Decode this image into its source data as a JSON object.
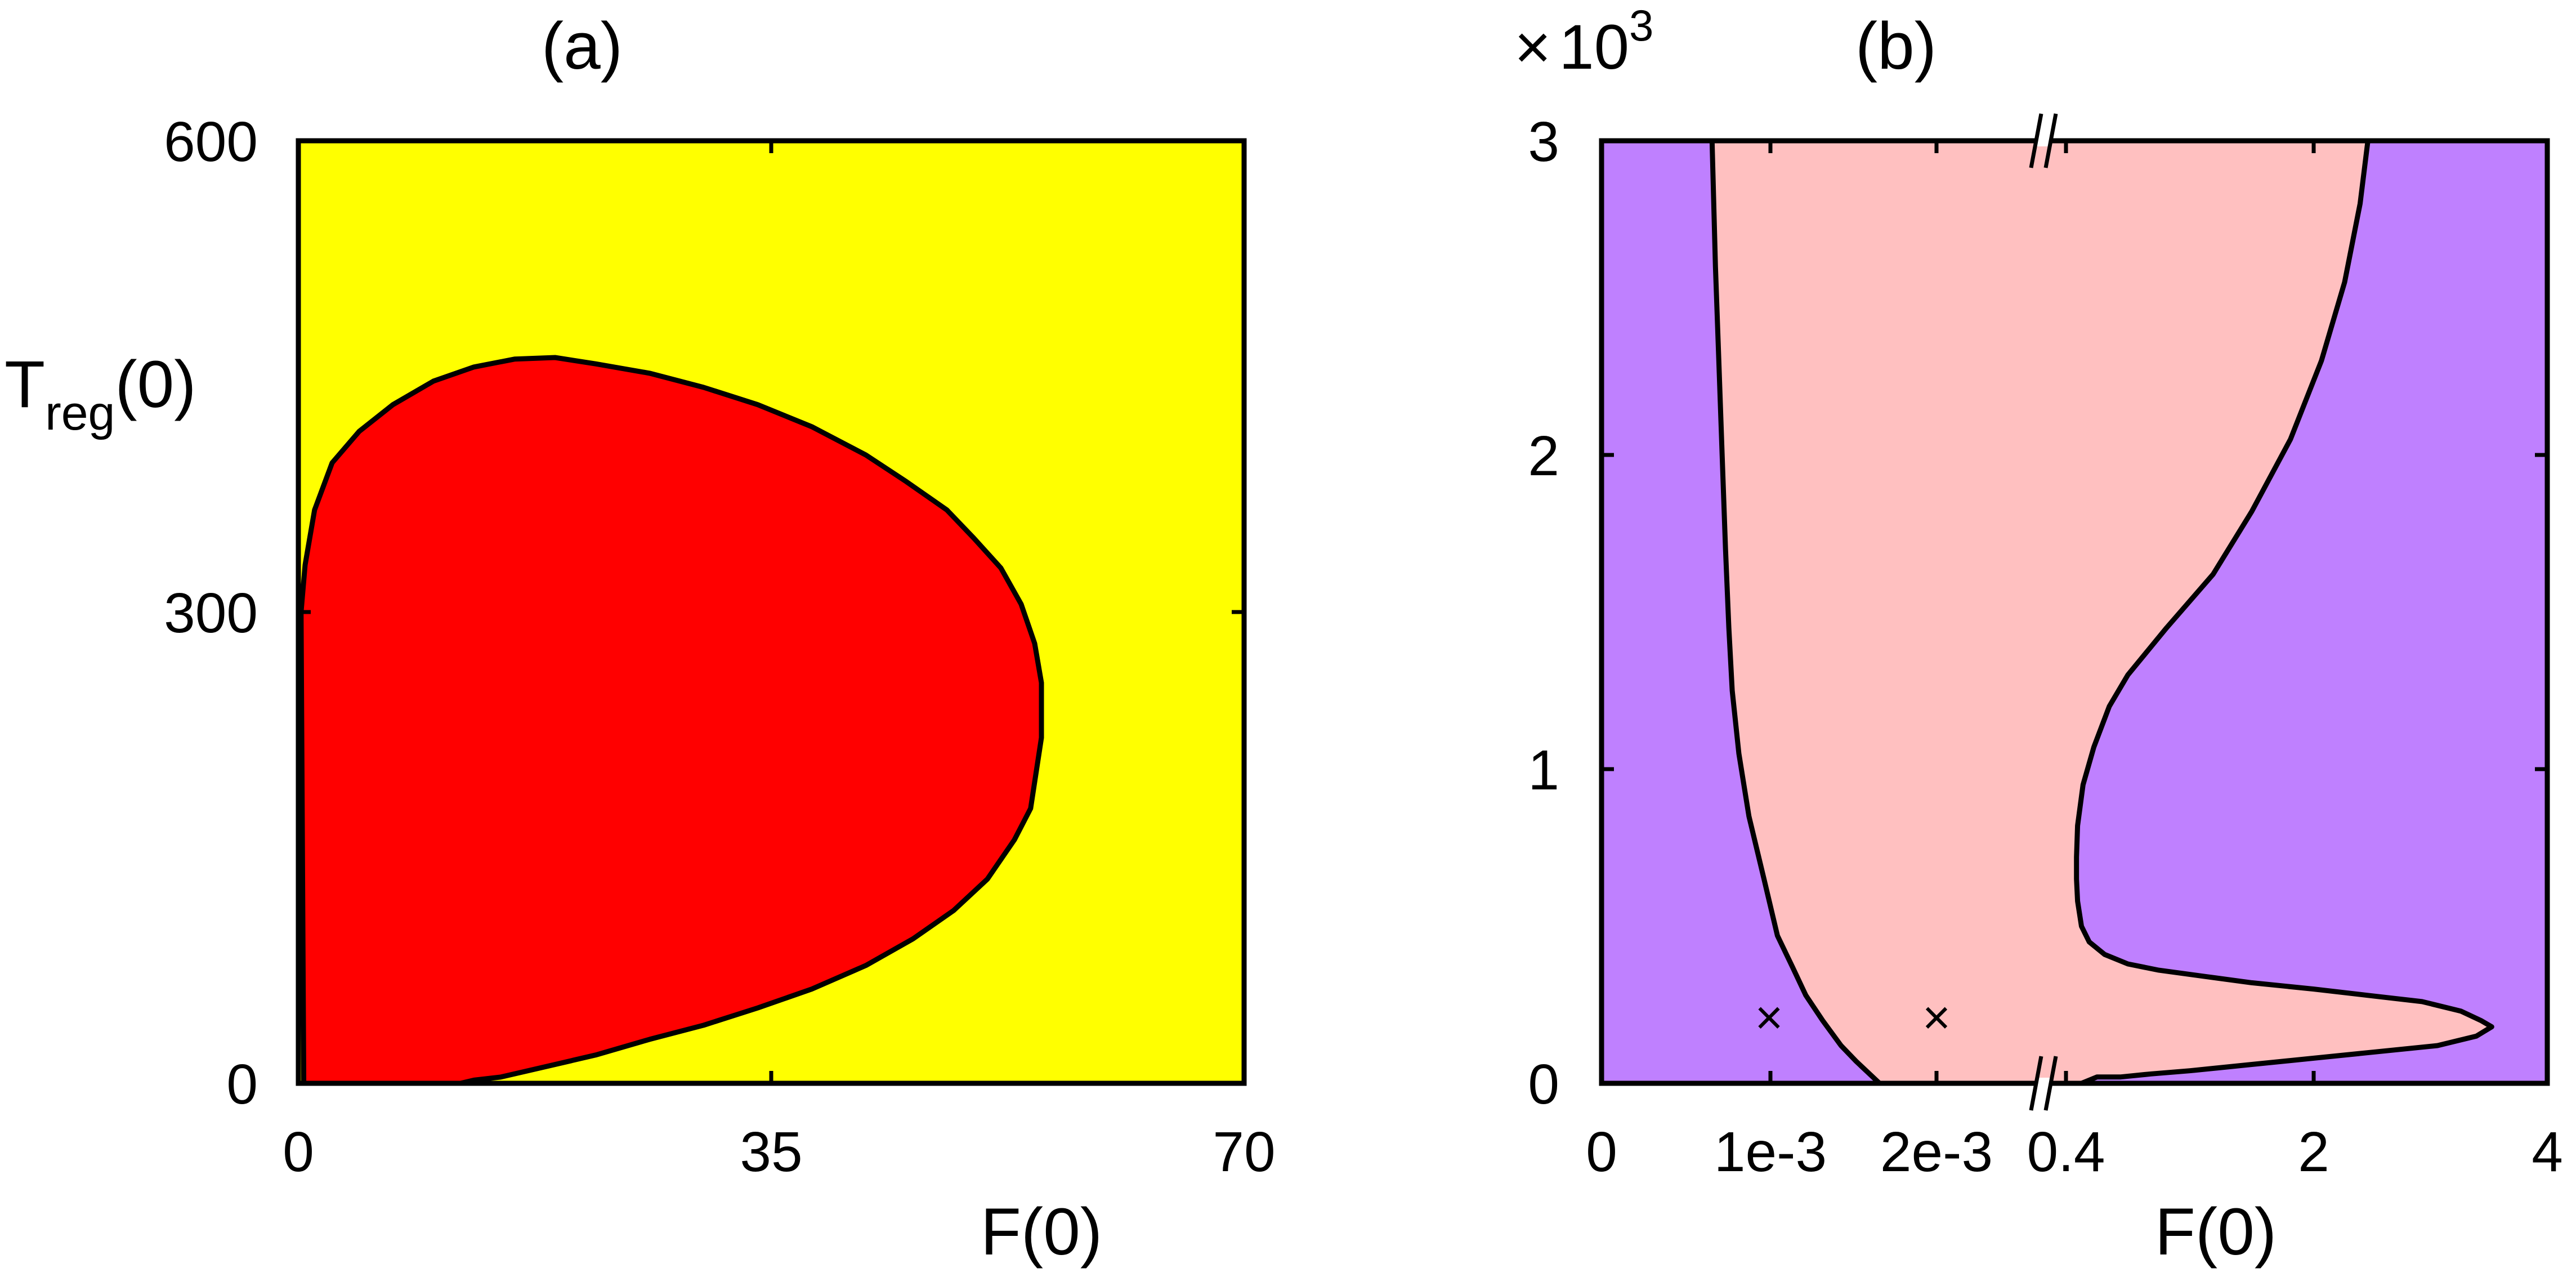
{
  "chart_data": [
    {
      "panel_label": "(a)",
      "type": "area",
      "xlabel": "F(0)",
      "ylabel_main": "T",
      "ylabel_sub": "reg",
      "ylabel_tail": "(0)",
      "xlim": [
        0,
        70
      ],
      "ylim": [
        0,
        600
      ],
      "x_ticks": [
        "0",
        "35",
        "70"
      ],
      "y_ticks": [
        "0",
        "300",
        "600"
      ],
      "background_color": "#ffff00",
      "region_color": "#ff0000",
      "boundary": {
        "x": [
          0.2,
          0.5,
          1.2,
          2.5,
          4.5,
          7,
          10,
          13,
          16,
          19,
          22,
          26,
          30,
          34,
          38,
          42,
          45,
          48,
          50,
          52,
          53.5,
          54.5,
          55,
          55,
          54.2,
          53,
          51,
          48.5,
          45.5,
          42,
          38,
          34,
          30,
          26,
          22,
          18,
          15,
          13,
          12,
          0.4
        ],
        "y": [
          300,
          330,
          365,
          395,
          415,
          432,
          447,
          456,
          461,
          462,
          458,
          452,
          443,
          432,
          418,
          400,
          383,
          365,
          347,
          328,
          305,
          280,
          255,
          220,
          175,
          155,
          130,
          110,
          92,
          75,
          60,
          48,
          37,
          28,
          18,
          10,
          4,
          2,
          0,
          0
        ]
      }
    },
    {
      "panel_label": "(b)",
      "type": "area",
      "xlabel": "F(0)",
      "multiplier_symbol": "×",
      "multiplier_base": "10",
      "multiplier_exp": "3",
      "ylim": [
        0,
        3
      ],
      "y_ticks": [
        "0",
        "1",
        "2",
        "3"
      ],
      "x_ticks": [
        "0",
        "1e-3",
        "2e-3",
        "0.4",
        "2",
        "4"
      ],
      "x_axis_break_between": [
        "2e-3",
        "0.4"
      ],
      "background_color": "#bf80ff",
      "region_color": "#ffc0c0",
      "markers": [
        {
          "symbol": "×",
          "x": "1e-3",
          "y": 0.2
        },
        {
          "symbol": "×",
          "x": "2e-3",
          "y": 0.2
        }
      ],
      "left_boundary": {
        "x": [
          0.00066,
          0.00068,
          0.0007,
          0.00072,
          0.00074,
          0.00076,
          0.00078,
          0.00082,
          0.00088,
          0.00097,
          0.00105,
          0.00114,
          0.00122,
          0.00132,
          0.00143,
          0.00152,
          0.00166
        ],
        "y": [
          3.0,
          2.6,
          2.3,
          2.0,
          1.7,
          1.45,
          1.25,
          1.05,
          0.85,
          0.65,
          0.47,
          0.37,
          0.28,
          0.2,
          0.12,
          0.07,
          0.0
        ]
      },
      "right_boundary": {
        "x": [
          2.35,
          2.3,
          2.2,
          2.05,
          1.85,
          1.6,
          1.35,
          1.05,
          0.8,
          0.68,
          0.58,
          0.51,
          0.475,
          0.468,
          0.468,
          0.475,
          0.5,
          0.55,
          0.65,
          0.8,
          1.0,
          1.3,
          1.6,
          2.0,
          2.35,
          2.7,
          2.95,
          3.08,
          3.15,
          3.05,
          2.8,
          2.4,
          2.0,
          1.6,
          1.2,
          0.95,
          0.75,
          0.6,
          0.5
        ],
        "y": [
          3.0,
          2.8,
          2.55,
          2.3,
          2.05,
          1.82,
          1.62,
          1.45,
          1.3,
          1.2,
          1.07,
          0.95,
          0.82,
          0.72,
          0.65,
          0.58,
          0.5,
          0.45,
          0.41,
          0.38,
          0.36,
          0.34,
          0.32,
          0.3,
          0.28,
          0.26,
          0.23,
          0.2,
          0.18,
          0.15,
          0.12,
          0.1,
          0.08,
          0.06,
          0.04,
          0.03,
          0.02,
          0.02,
          0.0
        ]
      }
    }
  ]
}
